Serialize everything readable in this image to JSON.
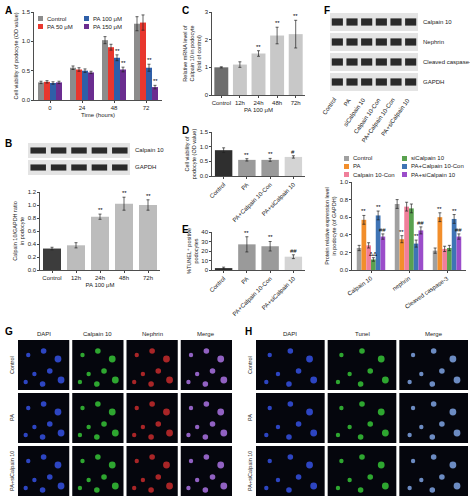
{
  "chart_data": [
    {
      "panel": "A",
      "type": "bar",
      "x_label": "Time (hours)",
      "y_label": "Cell viability of podocyte (OD value)",
      "categories": [
        "0",
        "24",
        "48",
        "72"
      ],
      "series": [
        {
          "name": "Control",
          "color": "#8c8c8c",
          "values": [
            0.3,
            0.55,
            1.02,
            1.3
          ],
          "errors": [
            0.02,
            0.03,
            0.06,
            0.12
          ]
        },
        {
          "name": "PA 50 μM",
          "color": "#e8372e",
          "values": [
            0.31,
            0.52,
            0.9,
            1.32
          ],
          "errors": [
            0.02,
            0.03,
            0.05,
            0.13
          ]
        },
        {
          "name": "PA 100 μM",
          "color": "#2f5fa8",
          "values": [
            0.29,
            0.5,
            0.72,
            0.55
          ],
          "errors": [
            0.02,
            0.03,
            0.05,
            0.06
          ],
          "marks": [
            null,
            null,
            "**",
            "**"
          ]
        },
        {
          "name": "PA 150 μM",
          "color": "#6b2d90",
          "values": [
            0.3,
            0.47,
            0.52,
            0.22
          ],
          "errors": [
            0.02,
            0.02,
            0.04,
            0.03
          ],
          "marks": [
            null,
            null,
            "**",
            "**"
          ]
        }
      ],
      "ylim": [
        0,
        1.5
      ],
      "yticks": [
        {
          "value": 0,
          "label": "0.0"
        },
        0.5,
        {
          "value": 1,
          "label": "1.0"
        },
        1.5
      ],
      "grid": false,
      "legend": "upper left"
    },
    {
      "panel": "B",
      "type": "bar",
      "x_label": "PA 100 μM",
      "y_label": [
        "Calpain 10/GAPDH ratio",
        "in podocyte"
      ],
      "categories": [
        "Control",
        "12h",
        "24h",
        "48h",
        "72h"
      ],
      "values": [
        0.33,
        0.38,
        0.82,
        1.02,
        1.0
      ],
      "errors": [
        0.02,
        0.04,
        0.04,
        0.1,
        0.08
      ],
      "marks": [
        null,
        null,
        "**",
        "**",
        "**"
      ],
      "colors": [
        "#3c3c3c",
        "#bcbcbc",
        "#bcbcbc",
        "#bcbcbc",
        "#bcbcbc"
      ],
      "ylim": [
        0,
        1.2
      ],
      "yticks": [
        {
          "value": 0,
          "label": "0.0"
        },
        0.2,
        0.4,
        0.6,
        0.8,
        {
          "value": 1,
          "label": "1.0"
        },
        1.2
      ],
      "grid": false
    },
    {
      "panel": "C",
      "type": "bar",
      "x_label": "PA 100 μM",
      "y_label": [
        "Relative mRNA level of",
        "Calpain 10 in podocyte",
        "(fold of control)"
      ],
      "categories": [
        "Control",
        "12h",
        "24h",
        "48h",
        "72h"
      ],
      "values": [
        1.0,
        1.1,
        1.5,
        2.15,
        2.2
      ],
      "errors": [
        0.02,
        0.1,
        0.1,
        0.3,
        0.5
      ],
      "marks": [
        null,
        null,
        "**",
        "**",
        "**"
      ],
      "colors": [
        "#6e6e6e",
        "#c8c8c8",
        "#c8c8c8",
        "#c8c8c8",
        "#c8c8c8"
      ],
      "ylim": [
        0,
        3
      ],
      "yticks": [
        0,
        1,
        2,
        3
      ],
      "grid": false
    },
    {
      "panel": "D",
      "type": "bar",
      "y_label": [
        "Cell viability of",
        "podocyte (OD value)"
      ],
      "categories": [
        "Control",
        "PA",
        "PA+Calpain 10-Con",
        "PA+siCalpain 10"
      ],
      "values": [
        0.88,
        0.55,
        0.55,
        0.65
      ],
      "errors": [
        0.08,
        0.04,
        0.05,
        0.04
      ],
      "marks": [
        null,
        "**",
        "**",
        "#"
      ],
      "colors": [
        "#2f2f2f",
        "#9a9a9a",
        "#9a9a9a",
        "#d4d4d4"
      ],
      "ylim": [
        0,
        1.5
      ],
      "yticks": [
        {
          "value": 0,
          "label": "0.0"
        },
        0.5,
        {
          "value": 1,
          "label": "1.0"
        },
        1.5
      ],
      "grid": false
    },
    {
      "panel": "E",
      "type": "bar",
      "y_label": [
        "%TUNEL⁺ positive",
        "podocytes"
      ],
      "categories": [
        "Control",
        "PA",
        "PA+Calpain 10-Con",
        "PA+siCalpain 10"
      ],
      "values": [
        2,
        27,
        25,
        14
      ],
      "errors": [
        1,
        8,
        5,
        2
      ],
      "marks": [
        null,
        "**",
        "**",
        "##"
      ],
      "colors": [
        "#2f2f2f",
        "#9a9a9a",
        "#9a9a9a",
        "#d4d4d4"
      ],
      "ylim": [
        0,
        40
      ],
      "yticks": [
        0,
        10,
        20,
        30,
        40
      ],
      "grid": false
    },
    {
      "panel": "F",
      "type": "bar",
      "y_label": [
        "Protein relative expression level",
        "in podocyte (of GAPDH)"
      ],
      "categories": [
        "Calpain 10",
        "nephrin",
        "Cleaved caspase-3"
      ],
      "series": [
        {
          "name": "Control",
          "color": "#a0a0a0",
          "values": [
            0.25,
            0.75,
            0.22
          ],
          "errors": [
            0.03,
            0.05,
            0.03
          ]
        },
        {
          "name": "PA",
          "color": "#f28e2b",
          "values": [
            0.57,
            0.35,
            0.6
          ],
          "errors": [
            0.05,
            0.04,
            0.05
          ],
          "marks": [
            "**",
            "**",
            "**"
          ]
        },
        {
          "name": "Calpain 10-Con",
          "color": "#f07f9a",
          "values": [
            0.28,
            0.72,
            0.24
          ],
          "errors": [
            0.03,
            0.05,
            0.03
          ]
        },
        {
          "name": "siCalpain 10",
          "color": "#59a14f",
          "values": [
            0.12,
            0.7,
            0.25
          ],
          "errors": [
            0.02,
            0.05,
            0.03
          ],
          "marks": [
            "ΔΔ",
            null,
            null
          ]
        },
        {
          "name": "PA+Calpain 10-Con",
          "color": "#3f74b5",
          "values": [
            0.62,
            0.3,
            0.58
          ],
          "errors": [
            0.05,
            0.04,
            0.05
          ],
          "marks": [
            "**",
            "**",
            "**"
          ]
        },
        {
          "name": "PA+siCalpain 10",
          "color": "#9b4dca",
          "values": [
            0.38,
            0.45,
            0.38
          ],
          "errors": [
            0.03,
            0.04,
            0.03
          ],
          "marks": [
            "##",
            "##",
            "##"
          ]
        }
      ],
      "ylim": [
        0,
        1.0
      ],
      "yticks": [
        {
          "value": 0,
          "label": "0.0"
        },
        0.2,
        0.4,
        0.6,
        0.8,
        {
          "value": 1,
          "label": "1.0"
        }
      ],
      "grid": false,
      "legend": "top"
    }
  ],
  "blots": [
    {
      "rows": [
        "Calpain 10",
        "GAPDH"
      ],
      "lanes": 5
    },
    {
      "rows": [
        "Calpain 10",
        "Nephrin",
        "Cleaved caspase-3",
        "GAPDH"
      ],
      "lanes": [
        "Control",
        "PA",
        "siCalpain 10",
        "Calpain 10-Con",
        "PA+Calpain 10-Con",
        "PA+siCalpain 10"
      ]
    }
  ],
  "micrographs": [
    {
      "panel": "G",
      "columns": [
        "DAPI",
        "Calpain 10",
        "Nephrin",
        "Merge"
      ],
      "rows": [
        "Control",
        "PA",
        "PA+siCalpain 10"
      ]
    },
    {
      "panel": "H",
      "columns": [
        "DAPI",
        "Tunel",
        "Merge"
      ],
      "rows": [
        "Control",
        "PA",
        "PA+siCalpain 10"
      ]
    }
  ]
}
